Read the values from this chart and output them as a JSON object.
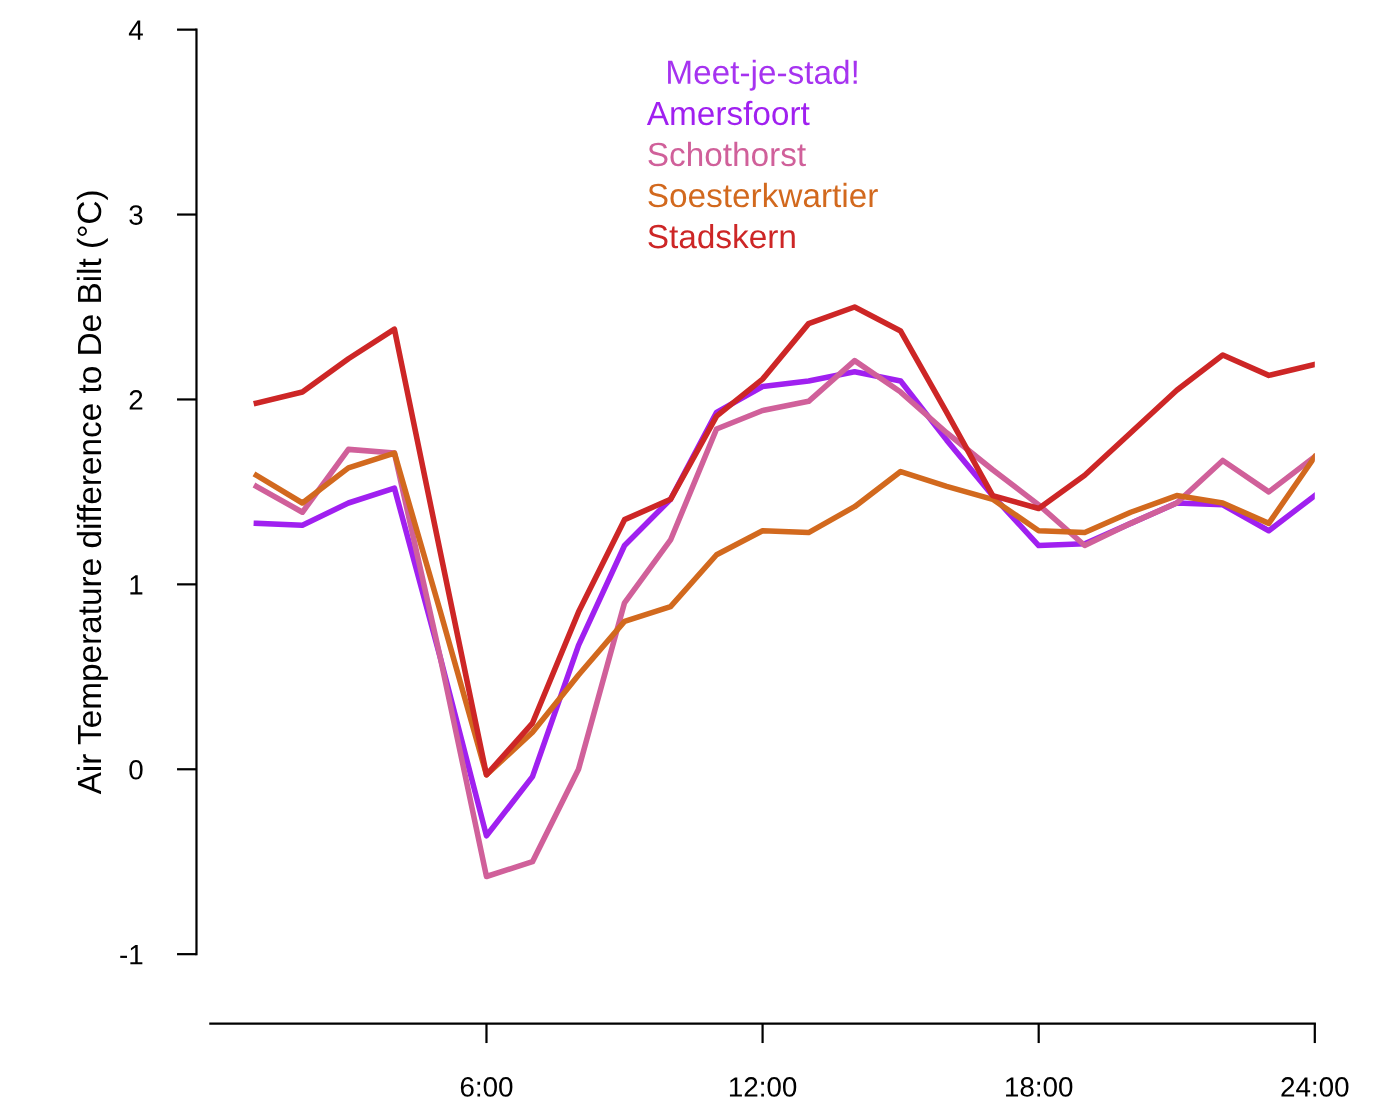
{
  "chart_data": {
    "type": "line",
    "ylabel": "Air Temperature difference to De Bilt (°C)",
    "legend_title": "Meet-je-stad!",
    "legend": "top",
    "x": [
      1,
      2,
      3,
      4,
      5,
      6,
      7,
      8,
      9,
      10,
      11,
      12,
      13,
      14,
      15,
      16,
      17,
      18,
      19,
      20,
      21,
      22,
      23,
      24
    ],
    "xlim": [
      0,
      24
    ],
    "xticks": [
      {
        "value": 6,
        "label": "6:00"
      },
      {
        "value": 12,
        "label": "12:00"
      },
      {
        "value": 18,
        "label": "18:00"
      },
      {
        "value": 24,
        "label": "24:00"
      }
    ],
    "ylim": [
      -1,
      4
    ],
    "yticks": [
      -1,
      0,
      1,
      2,
      3,
      4
    ],
    "grid": false,
    "marker": "none",
    "line_style": "solid",
    "series": [
      {
        "name": "Amersfoort",
        "color": "#a020f0",
        "values": [
          1.33,
          1.32,
          1.44,
          1.52,
          0.6,
          -0.36,
          -0.04,
          0.67,
          1.21,
          1.46,
          1.93,
          2.07,
          2.1,
          2.15,
          2.1,
          1.78,
          1.48,
          1.21,
          1.22,
          1.33,
          1.44,
          1.43,
          1.29,
          1.48
        ]
      },
      {
        "name": "Schothorst",
        "color": "#d0609a",
        "values": [
          1.53,
          1.39,
          1.73,
          1.71,
          0.6,
          -0.58,
          -0.5,
          0.0,
          0.9,
          1.24,
          1.84,
          1.94,
          1.99,
          2.21,
          2.04,
          1.82,
          1.62,
          1.43,
          1.21,
          1.33,
          1.44,
          1.67,
          1.5,
          1.69
        ]
      },
      {
        "name": "Soesterkwartier",
        "color": "#d2691e",
        "values": [
          1.59,
          1.44,
          1.63,
          1.71,
          0.85,
          -0.03,
          0.2,
          0.51,
          0.8,
          0.88,
          1.16,
          1.29,
          1.28,
          1.42,
          1.61,
          1.53,
          1.46,
          1.29,
          1.28,
          1.39,
          1.48,
          1.44,
          1.33,
          1.69
        ]
      },
      {
        "name": "Stadskern",
        "color": "#cd2626",
        "values": [
          1.98,
          2.04,
          2.22,
          2.38,
          1.17,
          -0.03,
          0.25,
          0.85,
          1.35,
          1.46,
          1.91,
          2.11,
          2.41,
          2.5,
          2.37,
          1.93,
          1.48,
          1.41,
          1.59,
          1.82,
          2.05,
          2.24,
          2.13,
          2.19
        ]
      }
    ]
  }
}
